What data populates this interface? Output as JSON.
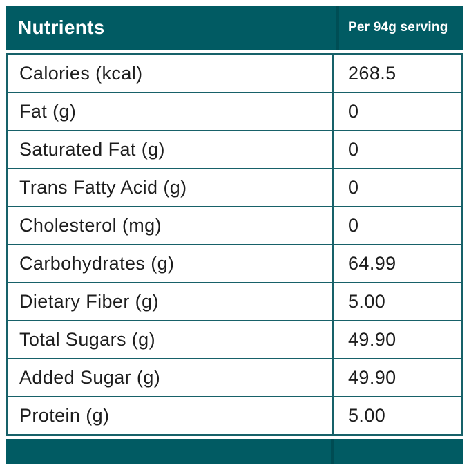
{
  "header": {
    "title": "Nutrients",
    "serving": "Per 94g serving"
  },
  "colors": {
    "teal_fill": "#015b63",
    "teal_border": "#176169",
    "text": "#1d1d1d",
    "background": "#ffffff"
  },
  "chart_data": {
    "type": "table",
    "title": "Nutrients",
    "columns": [
      "Nutrients",
      "Per 94g serving"
    ],
    "rows": [
      [
        "Calories (kcal)",
        "268.5"
      ],
      [
        "Fat (g)",
        "0"
      ],
      [
        "Saturated Fat (g)",
        "0"
      ],
      [
        "Trans Fatty Acid (g)",
        "0"
      ],
      [
        "Cholesterol (mg)",
        "0"
      ],
      [
        "Carbohydrates (g)",
        "64.99"
      ],
      [
        "Dietary Fiber (g)",
        "5.00"
      ],
      [
        "Total Sugars (g)",
        "49.90"
      ],
      [
        "Added Sugar (g)",
        "49.90"
      ],
      [
        "Protein (g)",
        "5.00"
      ]
    ]
  }
}
